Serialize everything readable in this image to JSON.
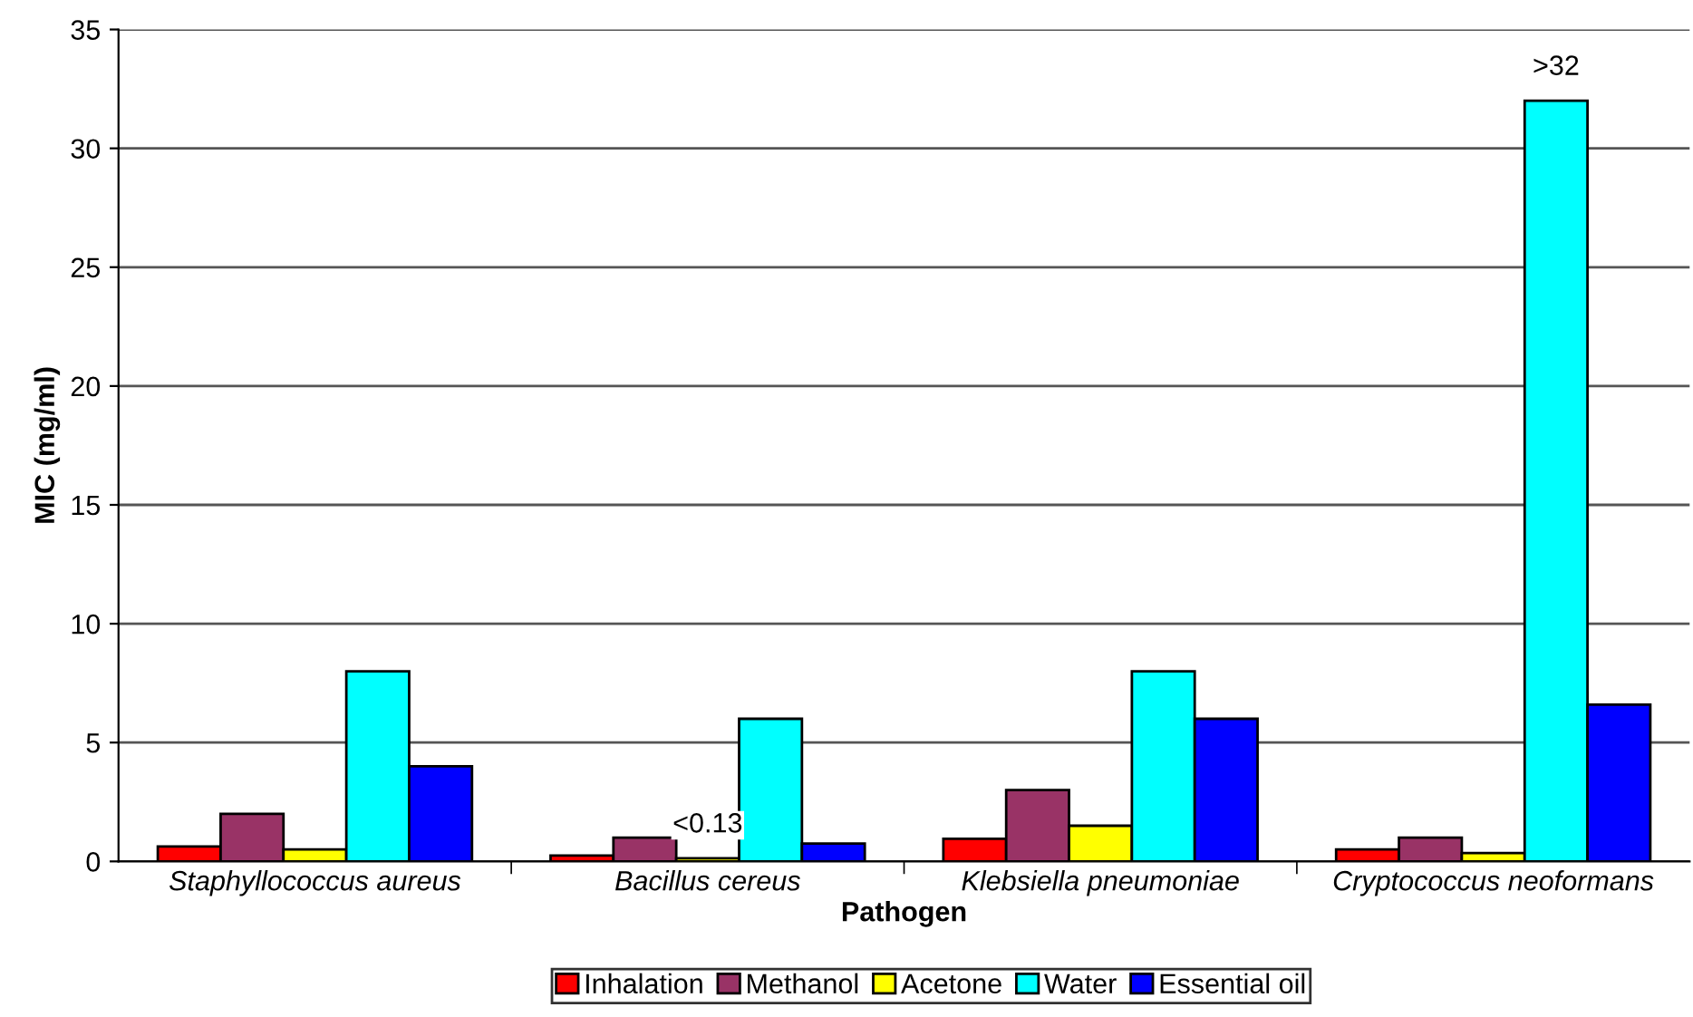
{
  "chart_data": {
    "type": "bar",
    "xlabel": "Pathogen",
    "ylabel": "MIC (mg/ml)",
    "categories": [
      "Staphyllococcus aureus",
      "Bacillus cereus",
      "Klebsiella pneumoniae",
      "Cryptococcus neoformans"
    ],
    "series": [
      {
        "name": "Inhalation",
        "color": "#ff0000",
        "values": [
          0.63,
          0.25,
          0.95,
          0.5
        ]
      },
      {
        "name": "Methanol",
        "color": "#993366",
        "values": [
          2,
          1,
          3,
          1
        ]
      },
      {
        "name": "Acetone",
        "color": "#ffff00",
        "values": [
          0.5,
          0.13,
          1.5,
          0.35
        ],
        "value_labels": [
          null,
          "<0.13",
          null,
          null
        ]
      },
      {
        "name": "Water",
        "color": "#00ffff",
        "values": [
          8,
          6,
          8,
          32
        ],
        "value_labels": [
          null,
          null,
          null,
          ">32"
        ]
      },
      {
        "name": "Essential oil",
        "color": "#0000ff",
        "values": [
          4,
          0.75,
          6,
          6.6
        ]
      }
    ],
    "ylim": [
      0,
      35
    ],
    "yticks": [
      0,
      5,
      10,
      15,
      20,
      25,
      30,
      35
    ],
    "grid": "y",
    "legend": "bottom"
  }
}
